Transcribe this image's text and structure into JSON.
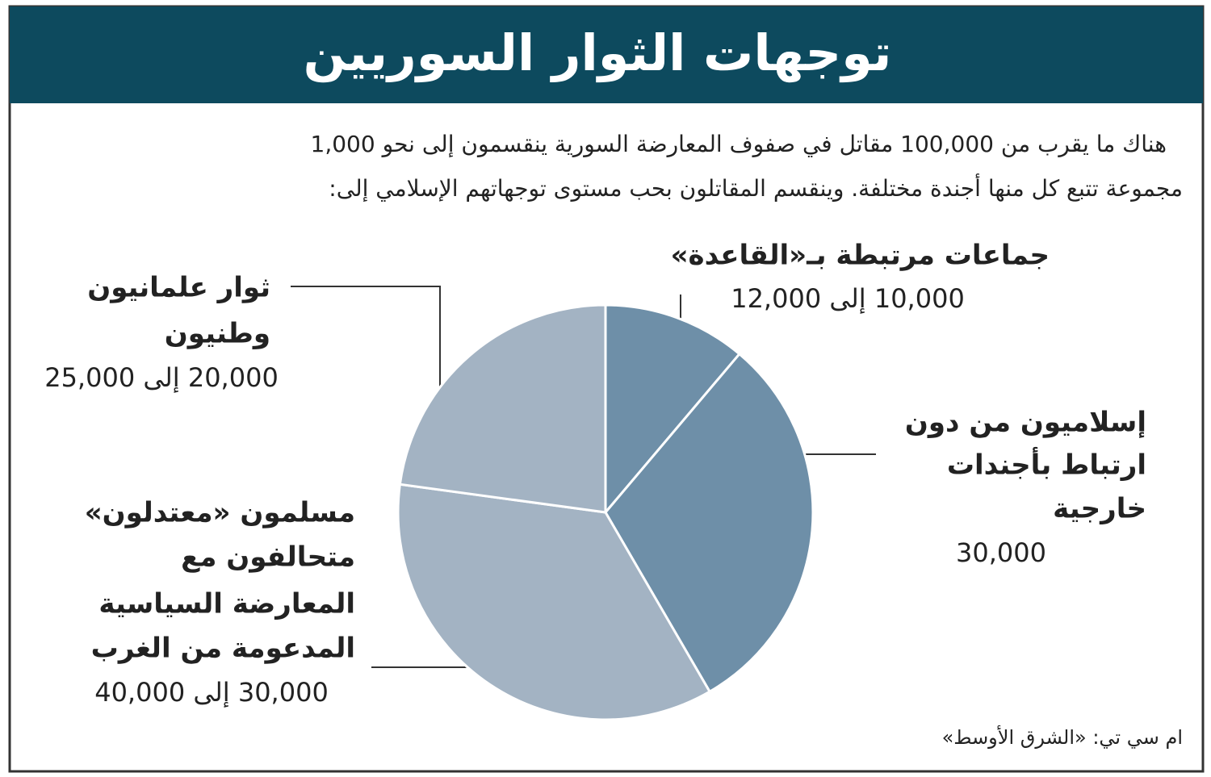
{
  "header": {
    "title": "توجهات الثوار السوريين"
  },
  "intro": [
    "هناك ما يقرب من 100,000 مقاتل في صفوف المعارضة السورية ينقسمون إلى نحو 1,000",
    "مجموعة تتبع كل منها أجندة مختلفة. وينقسم المقاتلون بحب مستوى توجهاتهم الإسلامي إلى:"
  ],
  "chart_data": {
    "type": "pie",
    "categories": [
      [
        "جماعات مرتبطة بـ«القاعدة»"
      ],
      [
        "إسلاميون من دون",
        "ارتباط بأجندات",
        "خارجية"
      ],
      [
        "مسلمون «معتدلون»",
        "متحالفون مع",
        "المعارضة السياسية",
        "المدعومة من الغرب"
      ],
      [
        "ثوار علمانيون",
        "وطنيون"
      ]
    ],
    "values": [
      10000,
      30000,
      30000,
      20000
    ],
    "values_high": [
      12000,
      null,
      40000,
      25000
    ],
    "value_labels": [
      "10,000 إلى 12,000",
      "30,000",
      "30,000 إلى 40,000",
      "20,000 إلى 25,000"
    ],
    "colors": [
      "#6e8fa8",
      "#6e8fa8",
      "#a3b3c3",
      "#a3b3c3"
    ]
  },
  "source": "ام سي تي: «الشرق الأوسط»"
}
